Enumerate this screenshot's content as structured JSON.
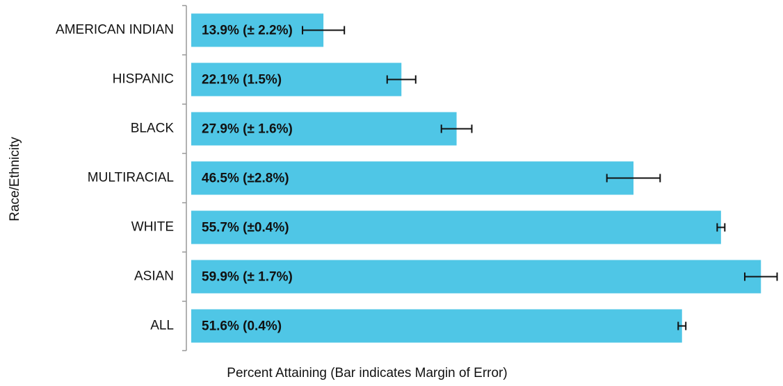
{
  "chart_data": {
    "type": "bar",
    "orientation": "horizontal",
    "x_label": "Percent Attaining  (Bar indicates Margin of Error)",
    "y_label": "Race/Ethnicity",
    "categories": [
      "AMERICAN INDIAN",
      "HISPANIC",
      "BLACK",
      "MULTIRACIAL",
      "WHITE",
      "ASIAN",
      "ALL"
    ],
    "values": [
      13.9,
      22.1,
      27.9,
      46.5,
      55.7,
      59.9,
      51.6
    ],
    "errors": [
      2.2,
      1.5,
      1.6,
      2.8,
      0.4,
      1.7,
      0.4
    ],
    "value_labels": [
      "13.9% (± 2.2%)",
      "22.1% (1.5%)",
      "27.9% (± 1.6%)",
      "46.5% (±2.8%)",
      "55.7% (±0.4%)",
      "59.9% (± 1.7%)",
      "51.6% (0.4%)"
    ],
    "color": "#4fc6e6",
    "xlim": [
      0,
      62
    ]
  }
}
